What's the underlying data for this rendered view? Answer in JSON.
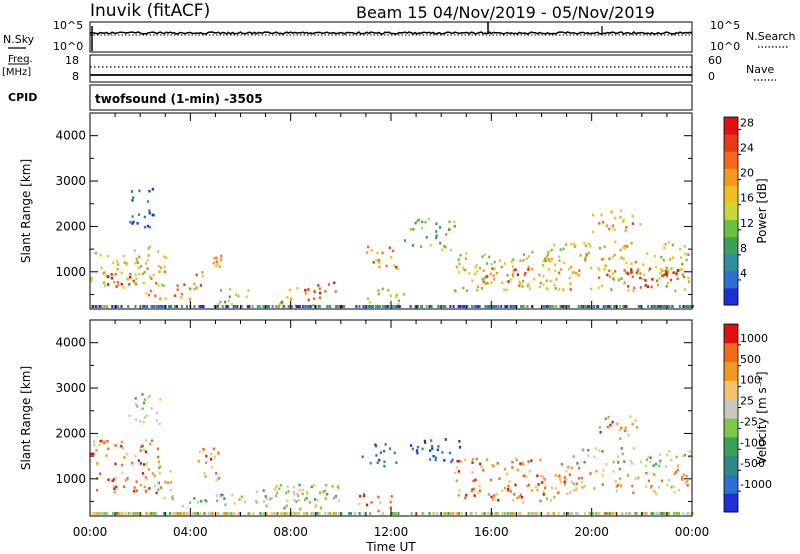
{
  "header": {
    "station": "Inuvik (fitACF)",
    "beam_range": "Beam 15  04/Nov/2019 - 05/Nov/2019",
    "cpid_label": "CPID",
    "cpid_text": "twofsound (1-min) -3505"
  },
  "noise_panel": {
    "left_label": "N.Sky",
    "right_label": "N.Search",
    "left_ticks": [
      "10^5",
      "10^0"
    ],
    "right_ticks": [
      "10^5",
      "10^0"
    ]
  },
  "freq_panel": {
    "left_label_line1": "Freq.",
    "left_label_line2": "[MHz]",
    "right_label": "Nave",
    "left_ticks": [
      "18",
      "8"
    ],
    "right_ticks": [
      "60",
      "0"
    ]
  },
  "colors": {
    "panel_border": "#000000",
    "background": "#ffffff"
  },
  "chart_data": [
    {
      "type": "heatmap",
      "title": "",
      "xlabel": "Time UT",
      "ylabel": "Slant Range [km]",
      "x_ticks": [
        "00:00",
        "04:00",
        "08:00",
        "12:00",
        "16:00",
        "20:00",
        "00:00"
      ],
      "y_ticks": [
        "1000",
        "2000",
        "3000",
        "4000"
      ],
      "ylim": [
        180,
        4500
      ],
      "xlim_hours": [
        0,
        24
      ],
      "colorbar": {
        "label": "Power [dB]",
        "ticks": [
          "4",
          "8",
          "12",
          "16",
          "20",
          "24",
          "28"
        ],
        "range": [
          0,
          30
        ],
        "colors": [
          "#1f2fd6",
          "#2f6fd0",
          "#2f8fa0",
          "#3aa05a",
          "#6cc040",
          "#c8d83a",
          "#f0c020",
          "#f39a1e",
          "#f06a1a",
          "#e83a18",
          "#e01010"
        ]
      },
      "blobs": [
        {
          "t0": 0.0,
          "t1": 2.2,
          "r0": 600,
          "r1": 1500,
          "level": 0.55
        },
        {
          "t0": 0.5,
          "t1": 2.0,
          "r0": 700,
          "r1": 1100,
          "level": 0.85
        },
        {
          "t0": 2.0,
          "t1": 3.0,
          "r0": 400,
          "r1": 1600,
          "level": 0.6
        },
        {
          "t0": 3.3,
          "t1": 4.6,
          "r0": 400,
          "r1": 800,
          "level": 0.75
        },
        {
          "t0": 4.2,
          "t1": 5.2,
          "r0": 900,
          "r1": 1500,
          "level": 0.65
        },
        {
          "t0": 5.0,
          "t1": 6.3,
          "r0": 300,
          "r1": 700,
          "level": 0.5
        },
        {
          "t0": 7.5,
          "t1": 9.0,
          "r0": 250,
          "r1": 700,
          "level": 0.7
        },
        {
          "t0": 8.5,
          "t1": 9.8,
          "r0": 400,
          "r1": 800,
          "level": 0.8
        },
        {
          "t0": 11.0,
          "t1": 12.3,
          "r0": 1000,
          "r1": 1600,
          "level": 0.75
        },
        {
          "t0": 11.0,
          "t1": 12.5,
          "r0": 300,
          "r1": 700,
          "level": 0.55
        },
        {
          "t0": 12.5,
          "t1": 14.5,
          "r0": 1500,
          "r1": 2200,
          "level": 0.35
        },
        {
          "t0": 14.5,
          "t1": 18.5,
          "r0": 600,
          "r1": 1500,
          "level": 0.55
        },
        {
          "t0": 15.5,
          "t1": 17.5,
          "r0": 700,
          "r1": 1100,
          "level": 0.8
        },
        {
          "t0": 18.0,
          "t1": 24.0,
          "r0": 600,
          "r1": 1700,
          "level": 0.6
        },
        {
          "t0": 20.5,
          "t1": 24.0,
          "r0": 700,
          "r1": 1100,
          "level": 0.9
        },
        {
          "t0": 20.0,
          "t1": 22.0,
          "r0": 1900,
          "r1": 2400,
          "level": 0.65
        },
        {
          "t0": 1.5,
          "t1": 2.6,
          "r0": 2000,
          "r1": 2900,
          "level": 0.15
        }
      ]
    },
    {
      "type": "heatmap",
      "title": "",
      "xlabel": "Time UT",
      "ylabel": "Slant Range [km]",
      "x_ticks": [
        "00:00",
        "04:00",
        "08:00",
        "12:00",
        "16:00",
        "20:00",
        "00:00"
      ],
      "y_ticks": [
        "1000",
        "2000",
        "3000",
        "4000"
      ],
      "ylim": [
        180,
        4500
      ],
      "xlim_hours": [
        0,
        24
      ],
      "colorbar": {
        "label": "Velocity [m s⁻¹]",
        "ticks": [
          "1000",
          "500",
          "100",
          "25",
          "-25",
          "-100",
          "-500",
          "-1000"
        ],
        "colors": [
          "#1f2fd6",
          "#2f6fd0",
          "#2e8a8a",
          "#3aa05a",
          "#7cc84a",
          "#c8c8c0",
          "#f4c46a",
          "#f39a1e",
          "#f06a1a",
          "#e01010"
        ]
      },
      "blobs": [
        {
          "t0": 0.0,
          "t1": 2.8,
          "r0": 700,
          "r1": 1900,
          "level": 0.8
        },
        {
          "t0": 2.5,
          "t1": 3.2,
          "r0": 600,
          "r1": 1300,
          "level": 0.55
        },
        {
          "t0": 4.2,
          "t1": 5.2,
          "r0": 900,
          "r1": 1700,
          "level": 0.8
        },
        {
          "t0": 3.0,
          "t1": 5.5,
          "r0": 400,
          "r1": 700,
          "level": 0.45
        },
        {
          "t0": 5.5,
          "t1": 9.5,
          "r0": 350,
          "r1": 800,
          "level": 0.5
        },
        {
          "t0": 7.0,
          "t1": 10.0,
          "r0": 500,
          "r1": 900,
          "level": 0.55
        },
        {
          "t0": 10.5,
          "t1": 12.0,
          "r0": 300,
          "r1": 700,
          "level": 0.8
        },
        {
          "t0": 10.8,
          "t1": 12.2,
          "r0": 1300,
          "r1": 1800,
          "level": 0.25
        },
        {
          "t0": 12.6,
          "t1": 15.0,
          "r0": 1400,
          "r1": 1900,
          "level": 0.1
        },
        {
          "t0": 14.5,
          "t1": 19.0,
          "r0": 500,
          "r1": 1500,
          "level": 0.78
        },
        {
          "t0": 18.5,
          "t1": 24.0,
          "r0": 700,
          "r1": 1300,
          "level": 0.7
        },
        {
          "t0": 19.0,
          "t1": 24.0,
          "r0": 1300,
          "r1": 1700,
          "level": 0.5
        },
        {
          "t0": 20.2,
          "t1": 21.8,
          "r0": 1900,
          "r1": 2400,
          "level": 0.8
        },
        {
          "t0": 1.5,
          "t1": 2.8,
          "r0": 2200,
          "r1": 2900,
          "level": 0.5
        }
      ]
    }
  ]
}
